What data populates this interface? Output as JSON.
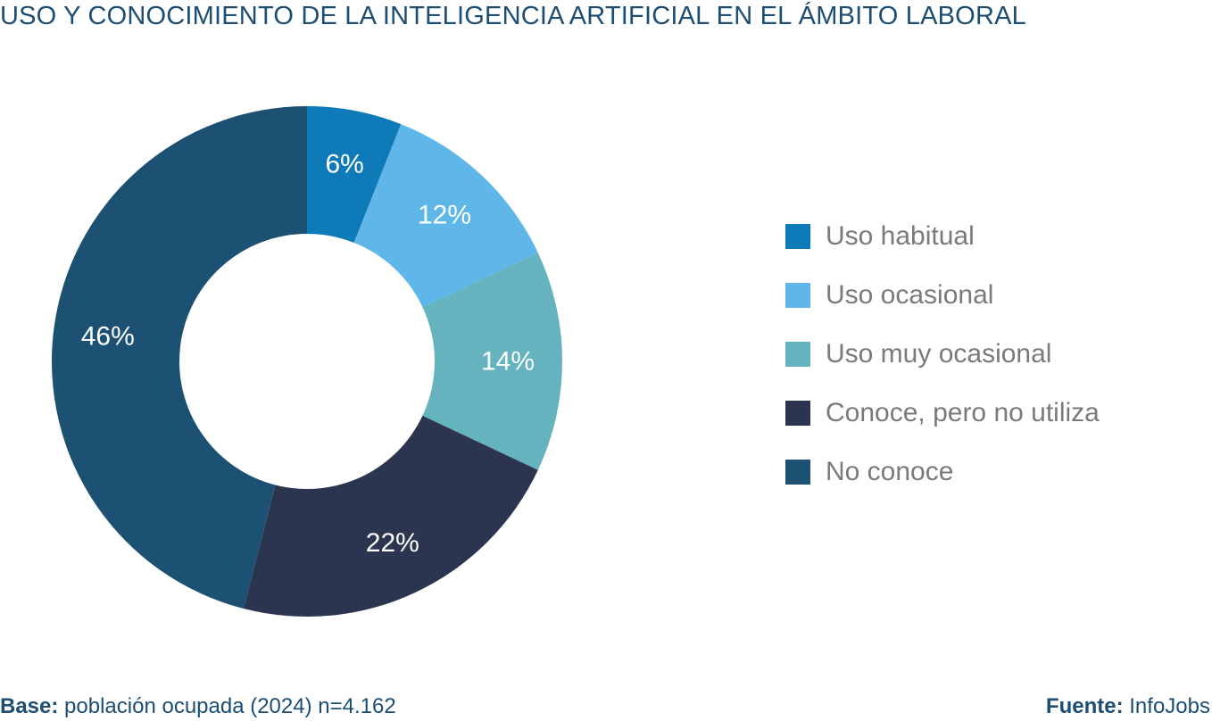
{
  "chart_data": {
    "type": "pie",
    "title": "USO Y CONOCIMIENTO DE LA INTELIGENCIA ARTIFICIAL EN EL ÁMBITO LABORAL",
    "categories": [
      "Uso habitual",
      "Uso ocasional",
      "Uso muy ocasional",
      "Conoce, pero no utiliza",
      "No conoce"
    ],
    "values": [
      6,
      12,
      14,
      22,
      46
    ],
    "value_labels": [
      "6%",
      "12%",
      "14%",
      "22%",
      "46%"
    ],
    "colors": [
      "#0f7ab8",
      "#5eb7e8",
      "#65b3bf",
      "#2c354f",
      "#1d5174"
    ],
    "donut": true,
    "legend_position": "right"
  },
  "footer": {
    "base_label": "Base:",
    "base_text": "población ocupada (2024) n=4.162",
    "source_label": "Fuente:",
    "source_text": "InfoJobs"
  }
}
